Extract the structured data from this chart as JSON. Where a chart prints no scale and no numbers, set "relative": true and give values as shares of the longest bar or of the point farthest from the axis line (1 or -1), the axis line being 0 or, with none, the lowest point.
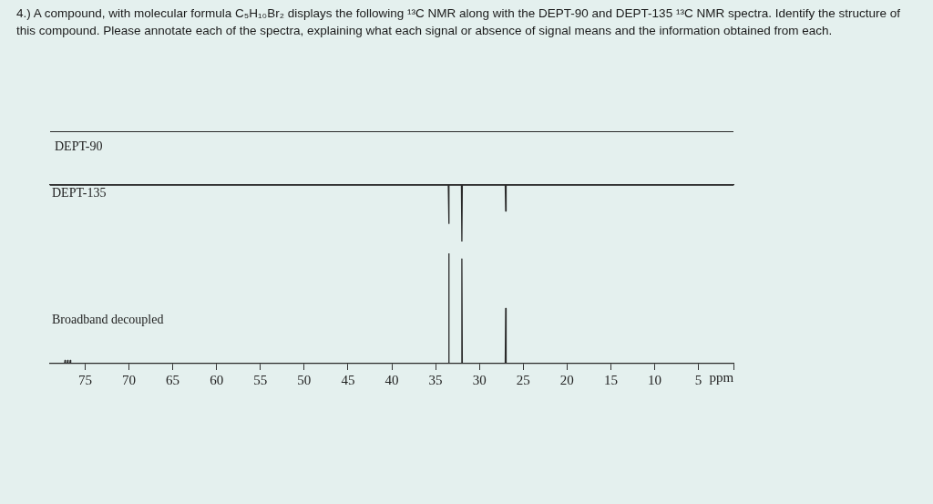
{
  "chart_data": [
    {
      "type": "other",
      "title": "4.) A compound, with molecular formula C₅H₁₀Br₂ displays the following ¹³C NMR along with the DEPT-90 and DEPT-135 ¹³C NMR spectra. Identify the structure of this compound. Please annotate each of the spectra, explaining what each signal or absence of signal means and the information obtained from each."
    },
    {
      "type": "other",
      "title": "DEPT-90"
    },
    {
      "type": "line",
      "title": "DEPT-135",
      "relative": true,
      "xlim": [
        79,
        1
      ],
      "tick_labels": false,
      "grid": false,
      "legend": false,
      "marker": "none",
      "line_style": "solid",
      "series": [
        {
          "color": "#2a2a2a",
          "x": [
            79,
            33.55,
            33.5,
            33.45,
            32.05,
            32.0,
            31.95,
            27.05,
            27.0,
            26.95,
            1
          ],
          "values": [
            0,
            0,
            -0.68,
            0,
            0,
            -1,
            0,
            0,
            -0.46,
            0,
            0
          ]
        }
      ]
    },
    {
      "type": "line",
      "title": "Broadband decoupled",
      "xlabel": "ppm",
      "relative": true,
      "xlim": [
        79,
        1
      ],
      "tick_labels": "x",
      "grid": false,
      "legend": false,
      "marker": "none",
      "line_style": "solid",
      "xticks": [
        75,
        70,
        65,
        60,
        55,
        50,
        45,
        40,
        35,
        30,
        25,
        20,
        15,
        10,
        5,
        {
          "value": 1,
          "label": null
        }
      ],
      "series": [
        {
          "color": "#2a2a2a",
          "x": [
            79,
            77.35,
            77.3,
            77.25,
            77.05,
            77.0,
            76.95,
            76.75,
            76.7,
            76.65,
            33.55,
            33.5,
            33.45,
            32.05,
            32.0,
            31.95,
            27.05,
            27.0,
            26.95,
            1
          ],
          "values": [
            0,
            0,
            0.03,
            0,
            0,
            0.03,
            0,
            0,
            0.03,
            0,
            0,
            1,
            0,
            0,
            0.95,
            0,
            0,
            0.5,
            0,
            0
          ]
        }
      ]
    }
  ]
}
